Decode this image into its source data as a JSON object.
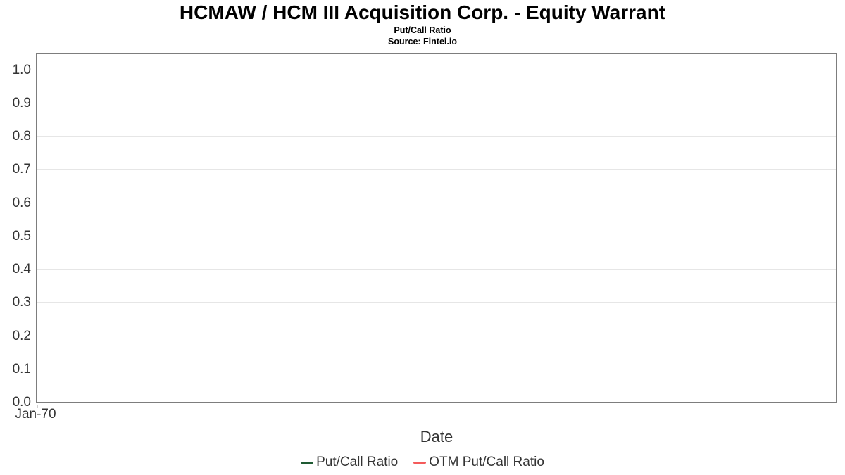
{
  "chart_data": {
    "type": "line",
    "title": "HCMAW / HCM III Acquisition Corp. - Equity Warrant",
    "subtitle": "Put/Call Ratio",
    "source": "Source: Fintel.io",
    "xlabel": "Date",
    "ylabel": "",
    "x_tick_labels": [
      "Jan-70"
    ],
    "ytick_labels": [
      "0.0",
      "0.1",
      "0.2",
      "0.3",
      "0.4",
      "0.5",
      "0.6",
      "0.7",
      "0.8",
      "0.9",
      "1.0"
    ],
    "ylim": [
      0.0,
      1.05
    ],
    "grid": "horizontal-only",
    "legend_position": "bottom-center",
    "series": [
      {
        "name": "Put/Call Ratio",
        "color": "#1e5a32",
        "x": [],
        "values": []
      },
      {
        "name": "OTM Put/Call Ratio",
        "color": "#f45b5b",
        "x": [],
        "values": []
      }
    ]
  },
  "colors": {
    "plot_border": "#7d7d7d",
    "gridline": "#e6e6e6",
    "axis_line": "#cfcfcf",
    "tick": "#cfcfcf",
    "title_text": "#000000",
    "axis_text": "#333333"
  }
}
